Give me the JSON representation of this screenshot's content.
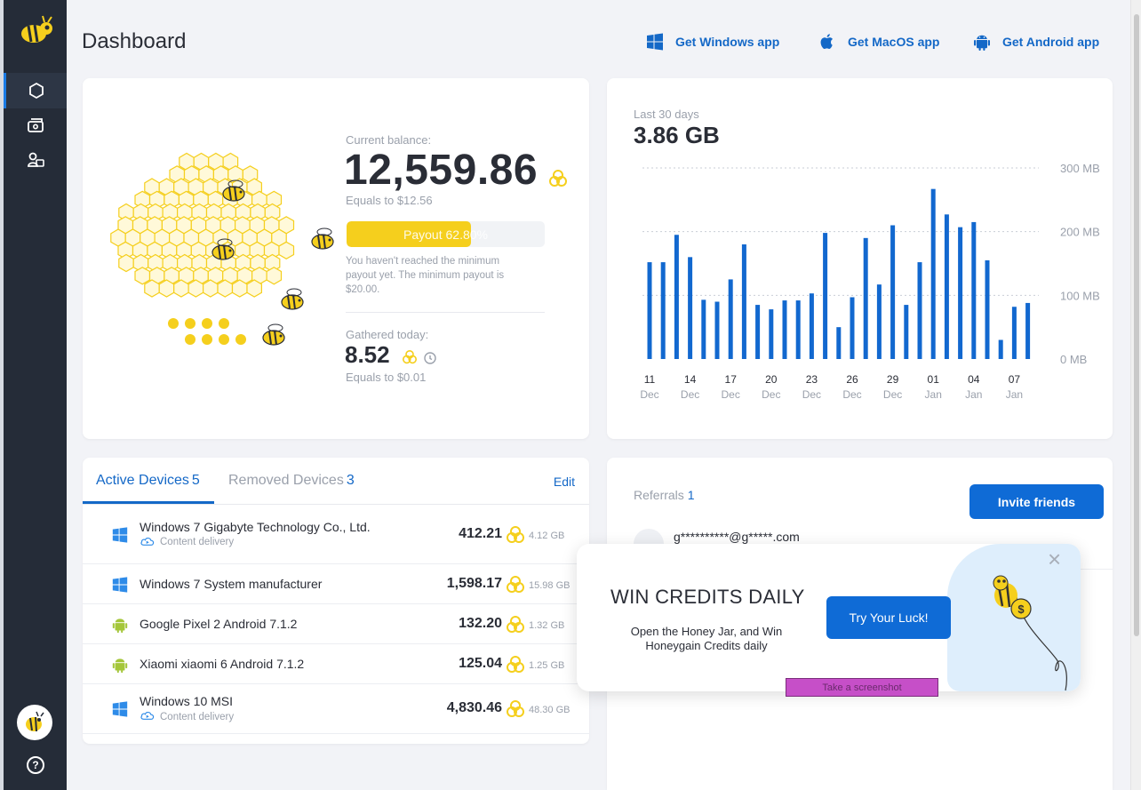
{
  "page": {
    "title": "Dashboard"
  },
  "header": {
    "windows_link": "Get Windows app",
    "macos_link": "Get MacOS app",
    "android_link": "Get Android app"
  },
  "balance": {
    "current_label": "Current balance:",
    "current_value": "12,559.86",
    "equals": "Equals to $12.56",
    "payout_label": "Payout 62.80%",
    "payout_progress": 0.628,
    "note": "You haven't reached the minimum payout yet. The minimum payout is $20.00.",
    "gathered_label": "Gathered today:",
    "gathered_value": "8.52",
    "gathered_equals": "Equals to $0.01"
  },
  "chart_data": {
    "type": "bar",
    "title": "Last 30 days",
    "total": "3.86 GB",
    "ylim": [
      0,
      300
    ],
    "y_ticks": [
      "300 MB",
      "200 MB",
      "100 MB",
      "0 MB"
    ],
    "x_ticks": [
      {
        "day": "11",
        "month": "Dec",
        "index": 0
      },
      {
        "day": "14",
        "month": "Dec",
        "index": 3
      },
      {
        "day": "17",
        "month": "Dec",
        "index": 6
      },
      {
        "day": "20",
        "month": "Dec",
        "index": 9
      },
      {
        "day": "23",
        "month": "Dec",
        "index": 12
      },
      {
        "day": "26",
        "month": "Dec",
        "index": 15
      },
      {
        "day": "29",
        "month": "Dec",
        "index": 18
      },
      {
        "day": "01",
        "month": "Jan",
        "index": 21
      },
      {
        "day": "04",
        "month": "Jan",
        "index": 24
      },
      {
        "day": "07",
        "month": "Jan",
        "index": 27
      }
    ],
    "values": [
      152,
      152,
      195,
      160,
      93,
      90,
      125,
      180,
      85,
      78,
      92,
      92,
      103,
      198,
      50,
      97,
      190,
      117,
      210,
      85,
      152,
      267,
      227,
      207,
      215,
      155,
      30,
      82,
      88
    ],
    "color": "#1268cf"
  },
  "devices": {
    "active_label": "Active Devices",
    "active_count": "5",
    "removed_label": "Removed Devices",
    "removed_count": "3",
    "edit_label": "Edit",
    "items": [
      {
        "name": "Windows 7 Gigabyte Technology Co., Ltd.",
        "sub": "Content delivery",
        "value": "412.21",
        "size": "4.12 GB",
        "icon": "windows-icon"
      },
      {
        "name": "Windows 7 System manufacturer",
        "sub": "",
        "value": "1,598.17",
        "size": "15.98 GB",
        "icon": "windows-icon"
      },
      {
        "name": "Google Pixel 2 Android 7.1.2",
        "sub": "",
        "value": "132.20",
        "size": "1.32 GB",
        "icon": "android-icon"
      },
      {
        "name": "Xiaomi xiaomi 6 Android 7.1.2",
        "sub": "",
        "value": "125.04",
        "size": "1.25 GB",
        "icon": "android-icon"
      },
      {
        "name": "Windows 10 MSI",
        "sub": "Content delivery",
        "value": "4,830.46",
        "size": "48.30 GB",
        "icon": "windows-icon"
      }
    ]
  },
  "referrals": {
    "label": "Referrals",
    "count": "1",
    "invite_label": "Invite friends",
    "email": "g**********@g*****.com"
  },
  "popup": {
    "title": "WIN CREDITS DAILY",
    "text": "Open the Honey Jar, and Win Honeygain Credits daily",
    "button": "Try Your Luck!",
    "close": "×"
  },
  "screenshot_tag": "Take a screenshot",
  "colors": {
    "accent": "#1468c7",
    "sidebar": "#252c38",
    "honey": "#f5cf1d"
  }
}
